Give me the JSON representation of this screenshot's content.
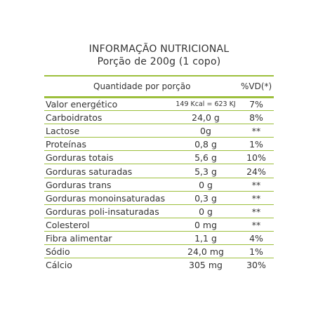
{
  "header": {
    "title": "INFORMAÇÃO NUTRICIONAL",
    "subtitle": "Porção de 200g (1 copo)"
  },
  "table": {
    "columns": [
      "Quantidade por porção",
      "%VD(*)"
    ],
    "rows": [
      [
        "Valor energético",
        "149 Kcal = 623 KJ",
        "7%"
      ],
      [
        "Carboidratos",
        "24,0 g",
        "8%"
      ],
      [
        "Lactose",
        "0g",
        "**"
      ],
      [
        "Proteínas",
        "0,8 g",
        "1%"
      ],
      [
        "Gorduras totais",
        "5,6 g",
        "10%"
      ],
      [
        "Gorduras saturadas",
        "5,3 g",
        "24%"
      ],
      [
        "Gorduras trans",
        "0 g",
        "**"
      ],
      [
        "Gorduras monoinsaturadas",
        "0,3 g",
        "**"
      ],
      [
        "Gorduras poli-insaturadas",
        "0 g",
        "**"
      ],
      [
        "Colesterol",
        "0 mg",
        "**"
      ],
      [
        "Fibra alimentar",
        "1,1 g",
        "4%"
      ],
      [
        "Sódio",
        "24,0 mg",
        "1%"
      ],
      [
        "Cálcio",
        "305 mg",
        "30%"
      ]
    ]
  }
}
